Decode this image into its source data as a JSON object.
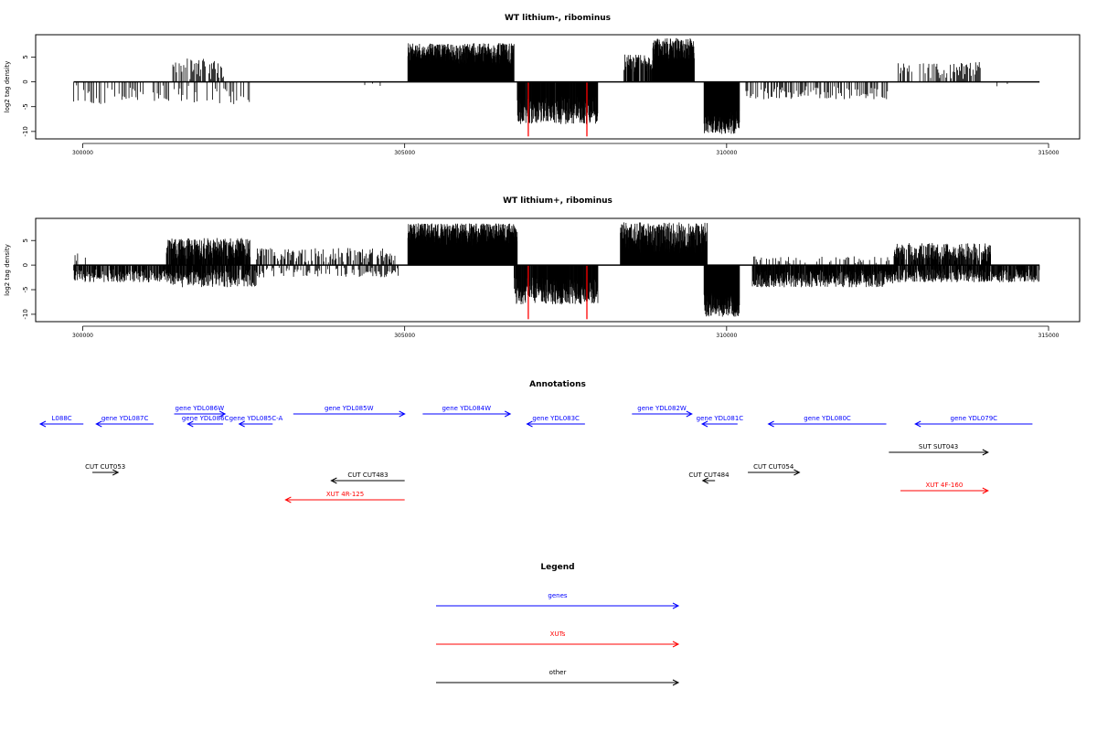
{
  "chart_data": [
    {
      "type": "bar",
      "title": "WT lithium-, ribominus",
      "ylabel": "log2 tag density",
      "xlabel": "",
      "xlim": [
        299860,
        315860
      ],
      "ylim": [
        -11.5,
        9.5
      ],
      "xticks": [
        300000,
        305000,
        310000,
        315000
      ],
      "yticks": [
        5,
        0,
        -5,
        -10
      ],
      "baseline": {
        "from": 299860,
        "to": 314860
      },
      "colors": {
        "bars": "#000000",
        "highlight": "#ff0000",
        "axis": "#000000"
      },
      "segments": [
        {
          "start": 299860,
          "end": 302650,
          "sign": -1,
          "min": 0.6,
          "max": 4.5,
          "step": 22,
          "density": 0.5
        },
        {
          "start": 301400,
          "end": 302200,
          "sign": 1,
          "min": 0.5,
          "max": 4.8,
          "step": 14,
          "density": 0.6
        },
        {
          "start": 303900,
          "end": 304900,
          "sign": -1,
          "min": 0.3,
          "max": 1.0,
          "step": 120,
          "density": 0.3
        },
        {
          "start": 305050,
          "end": 306700,
          "sign": 1,
          "min": 3.5,
          "max": 7.8,
          "step": 4,
          "density": 1.0
        },
        {
          "start": 306750,
          "end": 308000,
          "sign": -1,
          "min": 3.0,
          "max": 8.5,
          "step": 4,
          "density": 0.9
        },
        {
          "start": 308400,
          "end": 308850,
          "sign": 1,
          "min": 2.0,
          "max": 5.5,
          "step": 6,
          "density": 0.8
        },
        {
          "start": 308850,
          "end": 309500,
          "sign": 1,
          "min": 4.0,
          "max": 8.8,
          "step": 4,
          "density": 1.0
        },
        {
          "start": 309650,
          "end": 310200,
          "sign": -1,
          "min": 5.0,
          "max": 10.5,
          "step": 3,
          "density": 1.0
        },
        {
          "start": 310300,
          "end": 312500,
          "sign": -1,
          "min": 0.8,
          "max": 3.5,
          "step": 14,
          "density": 0.6
        },
        {
          "start": 312650,
          "end": 313950,
          "sign": 1,
          "min": 0.6,
          "max": 4.0,
          "step": 14,
          "density": 0.6
        },
        {
          "start": 314200,
          "end": 314800,
          "sign": -1,
          "min": 0.3,
          "max": 1.0,
          "step": 80,
          "density": 0.3
        }
      ],
      "highlights": [
        {
          "x": 306920,
          "y": -11
        },
        {
          "x": 307830,
          "y": -11
        }
      ]
    },
    {
      "type": "bar",
      "title": "WT lithium+, ribominus",
      "ylabel": "log2 tag density",
      "xlabel": "",
      "xlim": [
        299860,
        315860
      ],
      "ylim": [
        -11.5,
        9.5
      ],
      "xticks": [
        300000,
        305000,
        310000,
        315000
      ],
      "yticks": [
        5,
        0,
        -5,
        -10
      ],
      "baseline": {
        "from": 299860,
        "to": 314860
      },
      "colors": {
        "bars": "#000000",
        "highlight": "#ff0000",
        "axis": "#000000"
      },
      "segments": [
        {
          "start": 299860,
          "end": 301300,
          "sign": -1,
          "min": 0.8,
          "max": 3.5,
          "step": 8,
          "density": 0.85
        },
        {
          "start": 299860,
          "end": 300100,
          "sign": 1,
          "min": 0.5,
          "max": 2.5,
          "step": 20,
          "density": 0.5
        },
        {
          "start": 301300,
          "end": 302600,
          "sign": 1,
          "min": 1.0,
          "max": 5.5,
          "step": 5,
          "density": 0.9
        },
        {
          "start": 301300,
          "end": 302700,
          "sign": -1,
          "min": 0.8,
          "max": 4.5,
          "step": 6,
          "density": 0.8
        },
        {
          "start": 302700,
          "end": 304900,
          "sign": 1,
          "min": 0.4,
          "max": 3.5,
          "step": 12,
          "density": 0.6
        },
        {
          "start": 302700,
          "end": 304900,
          "sign": -1,
          "min": 0.4,
          "max": 2.5,
          "step": 14,
          "density": 0.5
        },
        {
          "start": 305050,
          "end": 306750,
          "sign": 1,
          "min": 3.5,
          "max": 8.5,
          "step": 3,
          "density": 1.0
        },
        {
          "start": 306700,
          "end": 308000,
          "sign": -1,
          "min": 2.5,
          "max": 8.0,
          "step": 4,
          "density": 0.9
        },
        {
          "start": 308350,
          "end": 309700,
          "sign": 1,
          "min": 2.5,
          "max": 8.7,
          "step": 4,
          "density": 1.0
        },
        {
          "start": 309650,
          "end": 310200,
          "sign": -1,
          "min": 5.0,
          "max": 10.5,
          "step": 3,
          "density": 1.0
        },
        {
          "start": 310400,
          "end": 312600,
          "sign": -1,
          "min": 1.0,
          "max": 4.5,
          "step": 5,
          "density": 0.9
        },
        {
          "start": 310400,
          "end": 312600,
          "sign": 1,
          "min": 0.3,
          "max": 1.8,
          "step": 20,
          "density": 0.4
        },
        {
          "start": 312600,
          "end": 314860,
          "sign": -1,
          "min": 0.8,
          "max": 3.5,
          "step": 6,
          "density": 0.8
        },
        {
          "start": 312600,
          "end": 314100,
          "sign": 1,
          "min": 0.5,
          "max": 4.5,
          "step": 6,
          "density": 0.8
        }
      ],
      "highlights": [
        {
          "x": 306920,
          "y": -11
        },
        {
          "x": 307830,
          "y": -11
        }
      ]
    }
  ],
  "annotations": {
    "title": "Annotations",
    "features": [
      {
        "label": "L088C",
        "category": "genes",
        "start": 299340,
        "end": 300010,
        "strand": "-",
        "row": 1
      },
      {
        "label": "gene YDL087C",
        "category": "genes",
        "start": 300210,
        "end": 301100,
        "strand": "-",
        "row": 1
      },
      {
        "label": "gene YDL086W",
        "category": "genes",
        "start": 301420,
        "end": 302210,
        "strand": "+",
        "row": 0
      },
      {
        "label": "gene YDL086C",
        "category": "genes",
        "start": 301630,
        "end": 302180,
        "strand": "-",
        "row": 1
      },
      {
        "label": "gene YDL085C-A",
        "category": "genes",
        "start": 302430,
        "end": 302950,
        "strand": "-",
        "row": 1
      },
      {
        "label": "gene YDL085W",
        "category": "genes",
        "start": 303270,
        "end": 305000,
        "strand": "+",
        "row": 0
      },
      {
        "label": "gene YDL084W",
        "category": "genes",
        "start": 305280,
        "end": 306640,
        "strand": "+",
        "row": 0
      },
      {
        "label": "gene YDL083C",
        "category": "genes",
        "start": 306900,
        "end": 307800,
        "strand": "-",
        "row": 1
      },
      {
        "label": "gene YDL082W",
        "category": "genes",
        "start": 308530,
        "end": 309460,
        "strand": "+",
        "row": 0
      },
      {
        "label": "gene YDL081C",
        "category": "genes",
        "start": 309620,
        "end": 310170,
        "strand": "-",
        "row": 1
      },
      {
        "label": "gene YDL080C",
        "category": "genes",
        "start": 310650,
        "end": 312480,
        "strand": "-",
        "row": 1
      },
      {
        "label": "gene YDL079C",
        "category": "genes",
        "start": 312930,
        "end": 314750,
        "strand": "-",
        "row": 1
      },
      {
        "label": "CUT CUT053",
        "category": "other",
        "start": 300150,
        "end": 300550,
        "strand": "+",
        "row": 2
      },
      {
        "label": "CUT CUT483",
        "category": "other",
        "start": 303860,
        "end": 305000,
        "strand": "-",
        "row": 3
      },
      {
        "label": "CUT CUT484",
        "category": "other",
        "start": 309630,
        "end": 309820,
        "strand": "-",
        "row": 3
      },
      {
        "label": "CUT CUT054",
        "category": "other",
        "start": 310330,
        "end": 311130,
        "strand": "+",
        "row": 2
      },
      {
        "label": "SUT SUT043",
        "category": "other",
        "start": 312520,
        "end": 314060,
        "strand": "+",
        "row": 4
      },
      {
        "label": "XUT 4R-125",
        "category": "XUTs",
        "start": 303150,
        "end": 305000,
        "strand": "-",
        "row": 5
      },
      {
        "label": "XUT 4F-160",
        "category": "XUTs",
        "start": 312700,
        "end": 314060,
        "strand": "+",
        "row": 6
      }
    ]
  },
  "legend": {
    "title": "Legend",
    "items": [
      {
        "label": "genes",
        "color": "#0000ff"
      },
      {
        "label": "XUTs",
        "color": "#ff0000"
      },
      {
        "label": "other",
        "color": "#000000"
      }
    ]
  }
}
